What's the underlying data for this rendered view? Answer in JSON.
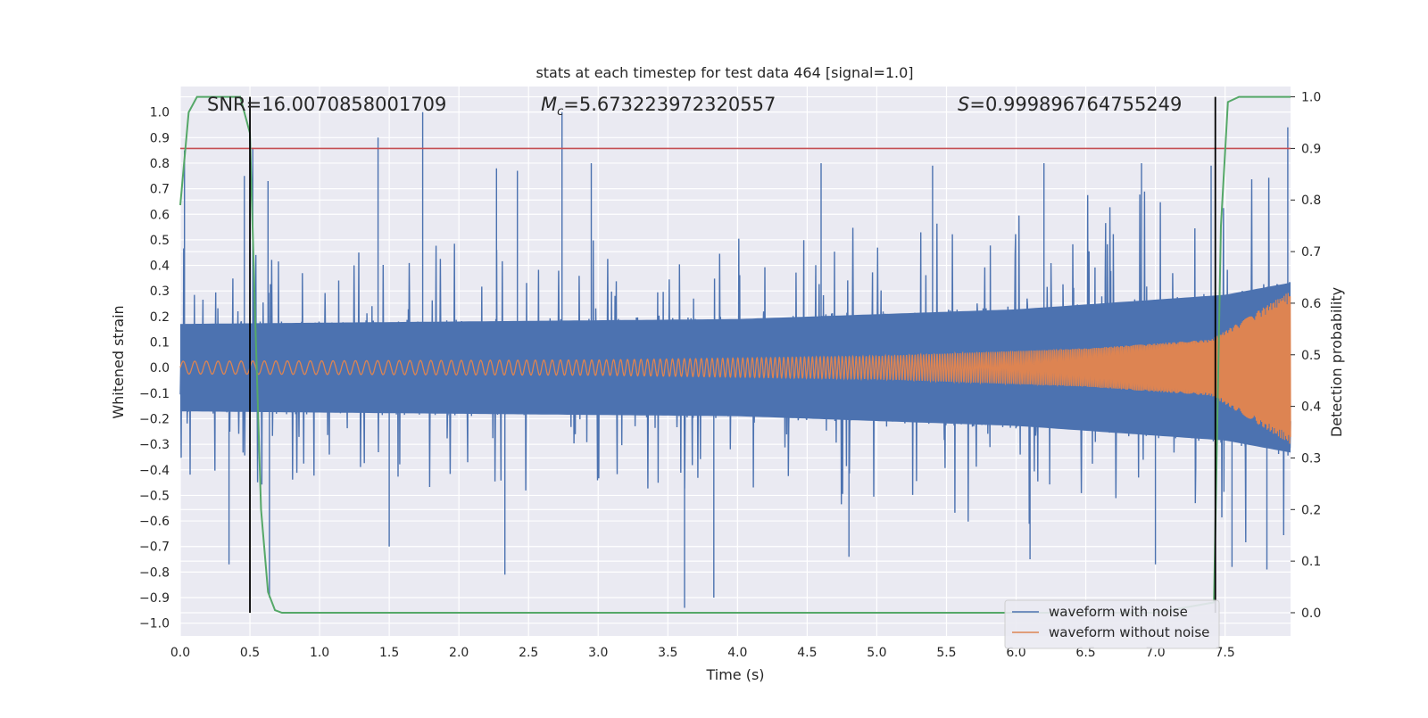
{
  "chart_data": {
    "type": "line",
    "title": "stats at each timestep for test data 464 [signal=1.0]",
    "xlabel": "Time (s)",
    "ylabel": "Whitened strain",
    "y2label": "Detection probability",
    "xlim": [
      0.0,
      7.97
    ],
    "ylim": [
      -1.05,
      1.1
    ],
    "y2lim": [
      -0.045,
      1.02
    ],
    "x_ticks": [
      "0.0",
      "0.5",
      "1.0",
      "1.5",
      "2.0",
      "2.5",
      "3.0",
      "3.5",
      "4.0",
      "4.5",
      "5.0",
      "5.5",
      "6.0",
      "6.5",
      "7.0",
      "7.5"
    ],
    "y_ticks": [
      "1.0",
      "0.9",
      "0.8",
      "0.7",
      "0.6",
      "0.5",
      "0.4",
      "0.3",
      "0.2",
      "0.1",
      "0.0",
      "−0.1",
      "−0.2",
      "−0.3",
      "−0.4",
      "−0.5",
      "−0.6",
      "−0.7",
      "−0.8",
      "−0.9",
      "−1.0"
    ],
    "y2_ticks": [
      "1.0",
      "0.9",
      "0.8",
      "0.7",
      "0.6",
      "0.5",
      "0.4",
      "0.3",
      "0.2",
      "0.1",
      "0.0"
    ],
    "grid": true,
    "legend_position": "lower-right",
    "annotations": {
      "snr": "SNR=16.0070858001709",
      "mc_symbol": "M",
      "mc_sub": "c",
      "mc_value": "=5.673223972320557",
      "s_symbol": "S",
      "s_value": "=0.999896764755249"
    },
    "series": [
      {
        "name": "waveform with noise",
        "color": "#4c72b0",
        "envelope": [
          [
            0.0,
            0.18
          ],
          [
            4.0,
            0.2
          ],
          [
            6.0,
            0.24
          ],
          [
            7.0,
            0.28
          ],
          [
            7.5,
            0.3
          ],
          [
            7.97,
            0.35
          ]
        ],
        "peaks": [
          [
            0.03,
            0.85
          ],
          [
            0.46,
            0.75
          ],
          [
            0.52,
            0.86
          ],
          [
            0.63,
            0.73
          ],
          [
            1.42,
            0.9
          ],
          [
            1.74,
            1.0
          ],
          [
            2.27,
            0.78
          ],
          [
            2.42,
            0.77
          ],
          [
            2.74,
            1.0
          ],
          [
            2.95,
            0.8
          ],
          [
            4.6,
            0.8
          ],
          [
            5.4,
            0.79
          ],
          [
            6.2,
            0.8
          ],
          [
            6.9,
            0.8
          ],
          [
            7.4,
            0.79
          ],
          [
            7.95,
            0.94
          ]
        ],
        "troughs": [
          [
            0.35,
            -0.77
          ],
          [
            0.64,
            -0.9
          ],
          [
            1.5,
            -0.7
          ],
          [
            2.33,
            -0.81
          ],
          [
            3.62,
            -0.94
          ],
          [
            3.83,
            -0.9
          ],
          [
            4.8,
            -0.74
          ],
          [
            6.1,
            -0.75
          ],
          [
            7.0,
            -0.77
          ],
          [
            7.55,
            -0.78
          ],
          [
            7.8,
            -0.79
          ]
        ]
      },
      {
        "name": "waveform without noise",
        "color": "#dd8452",
        "chirp": {
          "amplitude": [
            [
              0.0,
              0.025
            ],
            [
              3.0,
              0.03
            ],
            [
              5.0,
              0.045
            ],
            [
              6.5,
              0.075
            ],
            [
              7.4,
              0.11
            ],
            [
              7.97,
              0.3
            ]
          ],
          "start_cycles_per_s": 12,
          "end_cycles_per_s": 140
        }
      },
      {
        "name": "detection probability",
        "color": "#55a868",
        "axis": "right",
        "x": [
          0.0,
          0.06,
          0.12,
          0.2,
          0.3,
          0.38,
          0.43,
          0.5,
          0.54,
          0.58,
          0.63,
          0.68,
          0.73,
          0.8,
          7.0,
          7.42,
          7.47,
          7.52,
          7.6,
          7.97
        ],
        "y": [
          0.79,
          0.97,
          1.0,
          1.0,
          1.0,
          1.0,
          1.0,
          0.93,
          0.55,
          0.2,
          0.04,
          0.005,
          0.0,
          0.0,
          0.0,
          0.02,
          0.75,
          0.99,
          1.0,
          1.0
        ]
      },
      {
        "name": "threshold",
        "color": "#c44e52",
        "axis": "right",
        "y": 0.9
      }
    ],
    "vertical_lines": [
      0.5,
      7.43
    ]
  }
}
